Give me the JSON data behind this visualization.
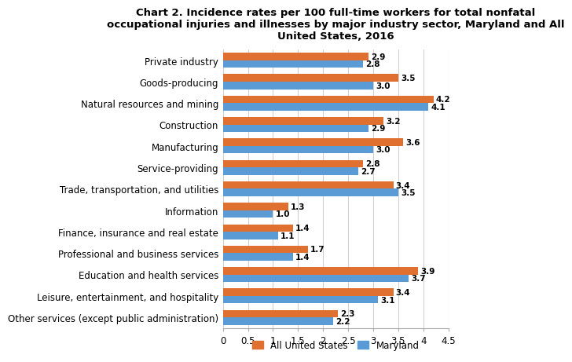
{
  "title": "Chart 2. Incidence rates per 100 full-time workers for total nonfatal\noccupational injuries and illnesses by major industry sector, Maryland and All\nUnited States, 2016",
  "categories": [
    "Private industry",
    "Goods-producing",
    "Natural resources and mining",
    "Construction",
    "Manufacturing",
    "Service-providing",
    "Trade, transportation, and utilities",
    "Information",
    "Finance, insurance and real estate",
    "Professional and business services",
    "Education and health services",
    "Leisure, entertainment, and hospitality",
    "Other services (except public administration)"
  ],
  "us_values": [
    2.9,
    3.5,
    4.2,
    3.2,
    3.6,
    2.8,
    3.4,
    1.3,
    1.4,
    1.7,
    3.9,
    3.4,
    2.3
  ],
  "md_values": [
    2.8,
    3.0,
    4.1,
    2.9,
    3.0,
    2.7,
    3.5,
    1.0,
    1.1,
    1.4,
    3.7,
    3.1,
    2.2
  ],
  "us_color": "#E07030",
  "md_color": "#5B9BD5",
  "xlim": [
    0,
    4.5
  ],
  "xticks": [
    0,
    0.5,
    1,
    1.5,
    2,
    2.5,
    3,
    3.5,
    4,
    4.5
  ],
  "bar_height": 0.35,
  "legend_labels": [
    "All United States",
    "Maryland"
  ],
  "title_fontsize": 9.5,
  "label_fontsize": 8.5,
  "tick_fontsize": 8.5,
  "annotation_fontsize": 7.5,
  "background_color": "#ffffff"
}
